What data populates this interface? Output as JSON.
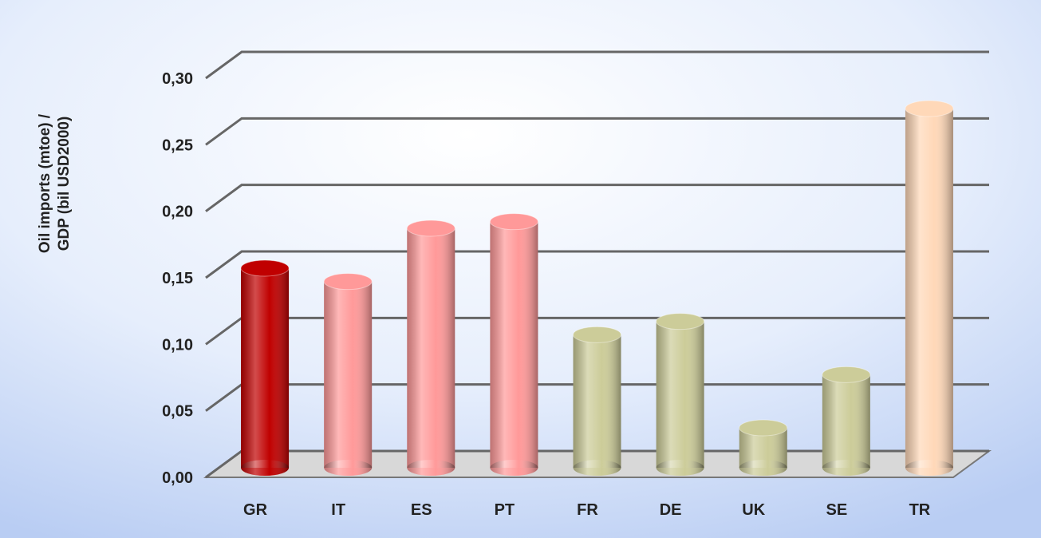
{
  "chart_data": {
    "type": "bar",
    "ylabel": [
      "Oil imports (mtoe) /",
      "GDP (bil USD2000)"
    ],
    "categories": [
      "GR",
      "IT",
      "ES",
      "PT",
      "FR",
      "DE",
      "UK",
      "SE",
      "TR"
    ],
    "values": [
      0.15,
      0.14,
      0.18,
      0.185,
      0.1,
      0.11,
      0.03,
      0.07,
      0.27
    ],
    "colors": [
      "#c00000",
      "#ff9999",
      "#ff9999",
      "#ff9999",
      "#cccc99",
      "#cccc99",
      "#cccc99",
      "#cccc99",
      "#ffd8b8"
    ],
    "ylim": [
      0,
      0.3
    ],
    "yticks": [
      {
        "value": 0,
        "label": "0,00"
      },
      {
        "value": 0.05,
        "label": "0,05"
      },
      {
        "value": 0.1,
        "label": "0,10"
      },
      {
        "value": 0.15,
        "label": "0,15"
      },
      {
        "value": 0.2,
        "label": "0,20"
      },
      {
        "value": 0.25,
        "label": "0,25"
      },
      {
        "value": 0.3,
        "label": "0,30"
      }
    ],
    "grid": true
  }
}
